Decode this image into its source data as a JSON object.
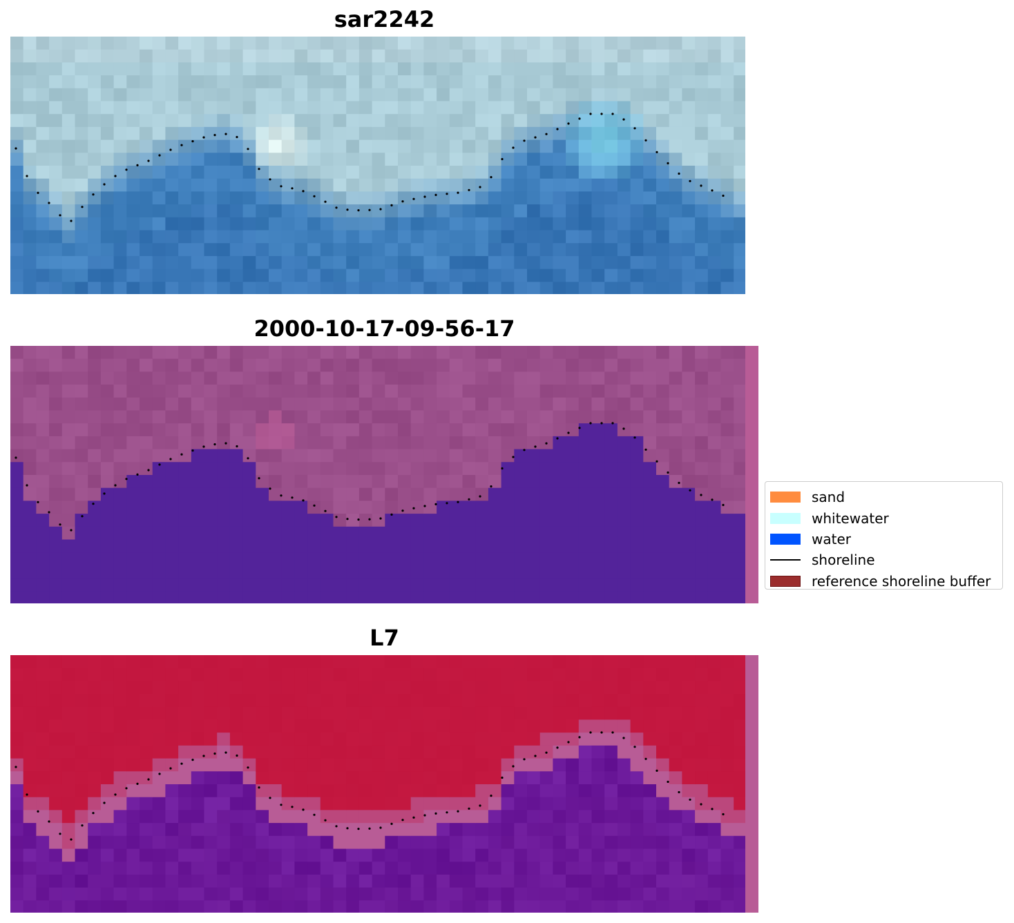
{
  "panels": [
    {
      "title": "sar2242",
      "variant": "rgb"
    },
    {
      "title": "2000-10-17-09-56-17",
      "variant": "classified"
    },
    {
      "title": "L7",
      "variant": "index"
    }
  ],
  "legend": {
    "items": [
      {
        "label": "sand",
        "kind": "patch",
        "color": "#ff8c3f"
      },
      {
        "label": "whitewater",
        "kind": "patch",
        "color": "#c8ffff"
      },
      {
        "label": "water",
        "kind": "patch",
        "color": "#0054ff"
      },
      {
        "label": "shoreline",
        "kind": "line",
        "color": "#000000"
      },
      {
        "label": "reference shoreline buffer",
        "kind": "patch",
        "color": "#9b2d2d"
      }
    ]
  },
  "colors": {
    "rgb_land": "#a9cbd6",
    "rgb_water": "#3f7fbc",
    "rgb_whitewater": "#8ee4f4",
    "classified_land": "#9a4f8a",
    "classified_water": "#53239a",
    "classified_edge": "#b85c96",
    "index_land": "#c2163e",
    "index_water": "#6b199a",
    "index_edge": "#b85c96",
    "shoreline_dots": "#000000"
  }
}
